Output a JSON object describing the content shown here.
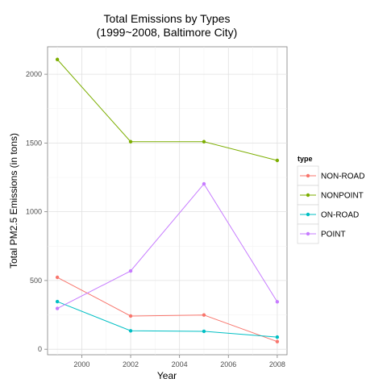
{
  "chart_data": {
    "type": "line",
    "title_line1": "Total Emissions by Types",
    "title_line2": "(1999~2008, Baltimore City)",
    "xlabel": "Year",
    "ylabel": "Total PM2.5 Emissions (in tons)",
    "xlim": [
      1998.6,
      2008.4
    ],
    "ylim": [
      -40,
      2200
    ],
    "x_ticks": [
      2000,
      2002,
      2004,
      2006,
      2008
    ],
    "x_minor": [
      1999,
      2001,
      2003,
      2005,
      2007
    ],
    "y_ticks": [
      0,
      500,
      1000,
      1500,
      2000
    ],
    "y_minor": [
      250,
      750,
      1250,
      1750
    ],
    "grid": true,
    "legend_title": "type",
    "legend_position": "right",
    "x": [
      1999,
      2002,
      2005,
      2008
    ],
    "series": [
      {
        "name": "NON-ROAD",
        "color": "#F8766D",
        "values": [
          522.9,
          241.8,
          248.9,
          55.8
        ]
      },
      {
        "name": "NONPOINT",
        "color": "#7CAE00",
        "values": [
          2107.6,
          1509.5,
          1509.5,
          1373.2
        ]
      },
      {
        "name": "ON-ROAD",
        "color": "#00BFC4",
        "values": [
          346.8,
          134.3,
          130.4,
          88.3
        ]
      },
      {
        "name": "POINT",
        "color": "#C77CFF",
        "values": [
          296.8,
          569.3,
          1202.5,
          344.98
        ]
      }
    ]
  }
}
